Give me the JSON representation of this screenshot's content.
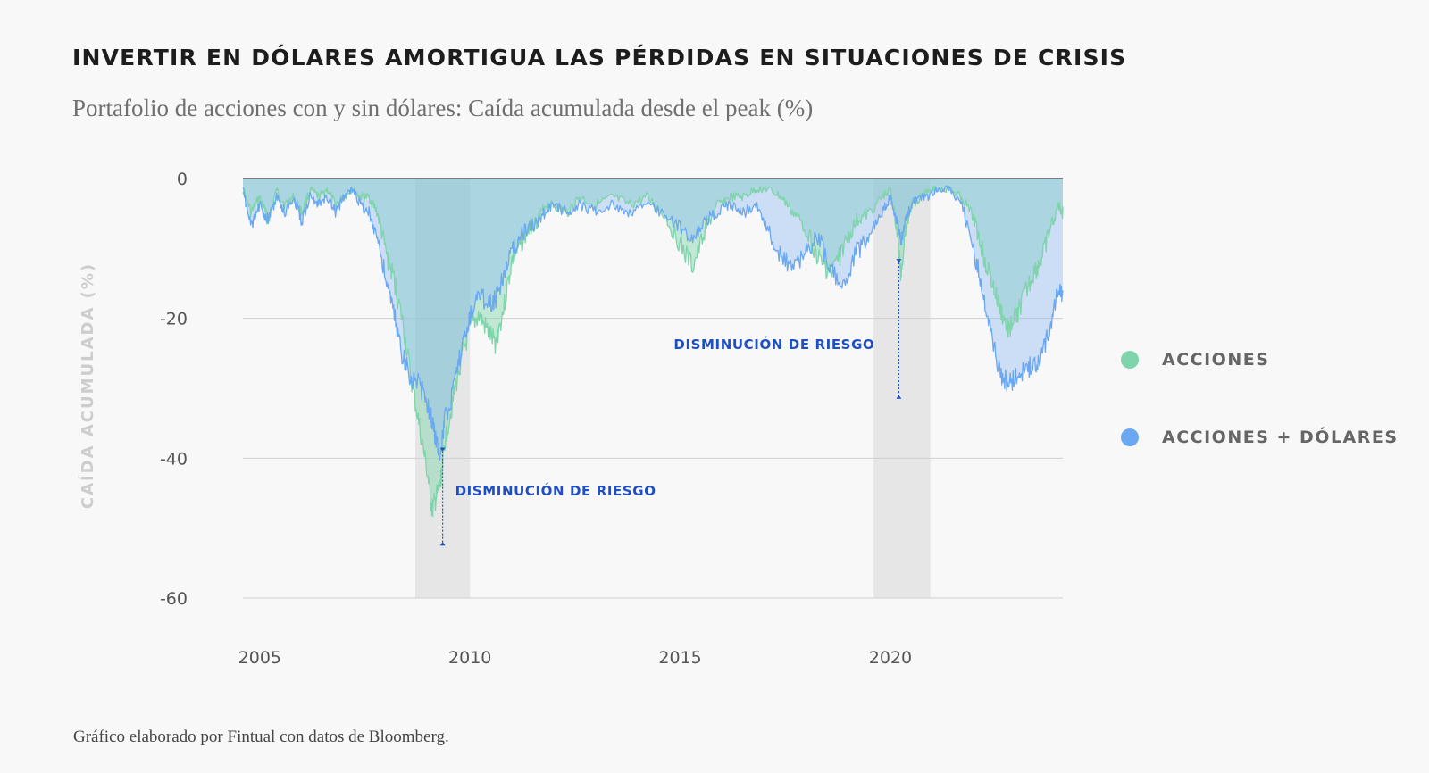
{
  "title": "INVERTIR EN DÓLARES AMORTIGUA LAS PÉRDIDAS EN SITUACIONES DE CRISIS",
  "subtitle": "Portafolio de acciones con y sin dólares: Caída acumulada desde el peak (%)",
  "footnote": "Gráfico elaborado por Fintual con datos de Bloomberg.",
  "colors": {
    "acciones": "#7fd4ab",
    "acciones_dolares": "#6aa8f2",
    "crisis_band": "#e6e6e6",
    "annotation": "#1f4fc2"
  },
  "chart_data": {
    "type": "area",
    "title": "Portafolio de acciones con y sin dólares: Caída acumulada desde el peak (%)",
    "xlabel": "",
    "ylabel": "CAÍDA ACUMULADA (%)",
    "xlim": [
      2004.6,
      2024.1
    ],
    "ylim": [
      -60,
      0
    ],
    "x_ticks": [
      2005,
      2010,
      2015,
      2020
    ],
    "y_ticks": [
      0,
      -20,
      -40,
      -60
    ],
    "y_tick_labels": [
      "0",
      "-20",
      "-40",
      "-60"
    ],
    "x_tick_labels": [
      "2005",
      "2010",
      "2015",
      "2020"
    ],
    "grid": true,
    "legend_position": "right",
    "crisis_periods": [
      [
        2008.7,
        2010.0
      ],
      [
        2019.6,
        2020.95
      ]
    ],
    "annotations": [
      {
        "text": "DISMINUCIÓN DE RIESGO",
        "x": 2009.35,
        "y_from": -38.5,
        "y_to": -52.5
      },
      {
        "text": "DISMINUCIÓN DE RIESGO",
        "x": 2020.2,
        "y_from": -11.5,
        "y_to": -31.5
      }
    ],
    "x": [
      2004.6,
      2004.8,
      2005.0,
      2005.2,
      2005.4,
      2005.6,
      2005.8,
      2006.0,
      2006.2,
      2006.4,
      2006.6,
      2006.8,
      2007.0,
      2007.2,
      2007.4,
      2007.6,
      2007.8,
      2008.0,
      2008.2,
      2008.4,
      2008.6,
      2008.8,
      2009.0,
      2009.1,
      2009.2,
      2009.3,
      2009.4,
      2009.6,
      2009.8,
      2010.0,
      2010.2,
      2010.4,
      2010.6,
      2010.8,
      2011.0,
      2011.2,
      2011.4,
      2011.6,
      2011.8,
      2012.0,
      2012.3,
      2012.6,
      2013.0,
      2013.4,
      2013.8,
      2014.2,
      2014.6,
      2015.0,
      2015.3,
      2015.6,
      2015.9,
      2016.2,
      2016.5,
      2016.8,
      2017.1,
      2017.4,
      2017.7,
      2018.0,
      2018.3,
      2018.6,
      2018.9,
      2019.2,
      2019.5,
      2019.8,
      2020.0,
      2020.15,
      2020.25,
      2020.35,
      2020.5,
      2020.7,
      2020.9,
      2021.1,
      2021.4,
      2021.7,
      2022.0,
      2022.2,
      2022.4,
      2022.6,
      2022.8,
      2023.0,
      2023.2,
      2023.4,
      2023.6,
      2023.8,
      2024.0,
      2024.1
    ],
    "series": [
      {
        "name": "ACCIONES",
        "values": [
          -1,
          -4,
          -2,
          -5,
          -1,
          -3,
          -2,
          -4,
          -1,
          -2,
          -1,
          -3,
          -2,
          -1,
          -2,
          -2,
          -4,
          -9,
          -13,
          -19,
          -27,
          -34,
          -41,
          -46,
          -44,
          -42,
          -36,
          -30,
          -24,
          -20,
          -18,
          -20,
          -22,
          -17,
          -10,
          -8,
          -6,
          -5,
          -3,
          -3,
          -4,
          -2,
          -3,
          -2,
          -3,
          -2,
          -4,
          -8,
          -11,
          -6,
          -3,
          -2,
          -2,
          -1,
          -1,
          -2,
          -4,
          -6,
          -10,
          -12,
          -8,
          -5,
          -4,
          -2,
          -1,
          -6,
          -12,
          -6,
          -3,
          -2,
          -1,
          -1,
          -1,
          -2,
          -5,
          -9,
          -13,
          -17,
          -20,
          -18,
          -15,
          -12,
          -10,
          -6,
          -3,
          -4
        ]
      },
      {
        "name": "ACCIONES + DÓLARES",
        "values": [
          -1,
          -6,
          -3,
          -5,
          -2,
          -4,
          -2,
          -5,
          -2,
          -3,
          -2,
          -4,
          -2,
          -1,
          -3,
          -4,
          -7,
          -13,
          -18,
          -24,
          -27,
          -28,
          -31,
          -33,
          -36,
          -38,
          -33,
          -29,
          -23,
          -18,
          -15,
          -16,
          -16,
          -12,
          -9,
          -7,
          -6,
          -5,
          -4,
          -3,
          -4,
          -3,
          -4,
          -3,
          -4,
          -3,
          -4,
          -6,
          -7,
          -5,
          -4,
          -3,
          -4,
          -3,
          -6,
          -10,
          -11,
          -9,
          -7,
          -12,
          -14,
          -9,
          -7,
          -4,
          -2,
          -5,
          -8,
          -5,
          -3,
          -2,
          -2,
          -1,
          -1,
          -3,
          -9,
          -15,
          -21,
          -26,
          -28,
          -27,
          -26,
          -25,
          -24,
          -20,
          -14,
          -16
        ]
      }
    ]
  },
  "legend": [
    {
      "label": "ACCIONES",
      "color": "#7fd4ab"
    },
    {
      "label": "ACCIONES + DÓLARES",
      "color": "#6aa8f2"
    }
  ]
}
